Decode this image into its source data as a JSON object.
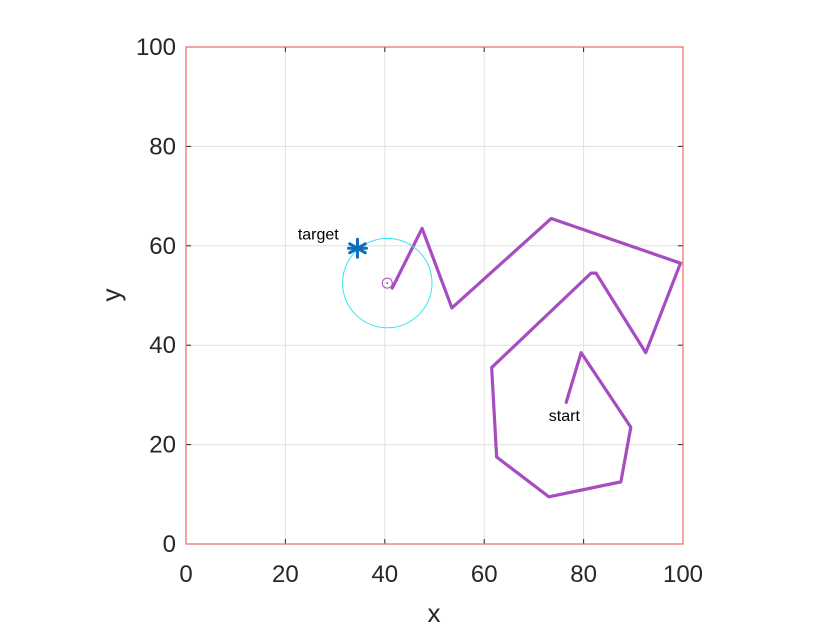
{
  "chart_data": {
    "type": "line",
    "title": "",
    "xlabel": "x",
    "ylabel": "y",
    "xlim": [
      0,
      100
    ],
    "ylim": [
      0,
      100
    ],
    "xticks": [
      "0",
      "20",
      "40",
      "60",
      "80",
      "100"
    ],
    "yticks": [
      "0",
      "20",
      "40",
      "60",
      "80",
      "100"
    ],
    "grid": true,
    "series": [
      {
        "x": [
          76.5,
          79.5,
          89.5,
          87.5,
          73,
          62.5,
          61.5,
          81.5,
          82.5,
          92.5,
          99.5,
          73.5,
          53.5,
          47.5,
          41.5
        ],
        "y": [
          28.5,
          38.5,
          23.5,
          12.5,
          9.5,
          17.5,
          35.5,
          54.5,
          54.5,
          38.5,
          56.5,
          65.5,
          47.5,
          63.5,
          51.5
        ]
      }
    ],
    "vehicle": {
      "x": 40.5,
      "y": 52.5,
      "range_radius": 9
    },
    "target": {
      "x": 34.5,
      "y": 59.5
    },
    "annotations": [
      {
        "text": "target",
        "x": 22.5,
        "y": 62.5
      },
      {
        "text": "start",
        "x": 73,
        "y": 26
      }
    ],
    "colors": {
      "path": "#a64dbf",
      "range_circle": "#33e6ee",
      "target": "#0d6ebd",
      "frame": "#f26666",
      "grid": "#e0e0e0"
    }
  }
}
